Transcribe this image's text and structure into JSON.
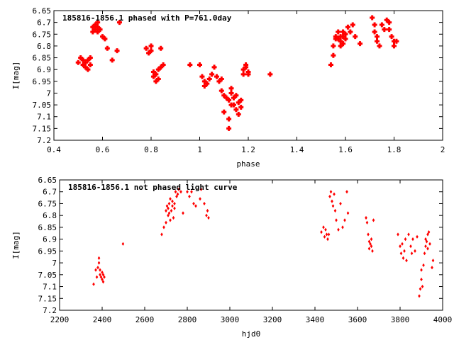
{
  "chart_data": [
    {
      "type": "scatter",
      "title": "",
      "xlabel": "phase",
      "ylabel": "I[mag]",
      "legend": "185816-1856.1 phased with P=761.0day",
      "legend_placement": "top-left",
      "xlim": [
        0.4,
        2.0
      ],
      "ylim": [
        6.65,
        7.2
      ],
      "y_inverted": true,
      "grid": false,
      "marker": "cross",
      "color": "#ff0000",
      "xticks": [
        "0.4",
        "0.6",
        "0.8",
        "1",
        "1.2",
        "1.4",
        "1.6",
        "1.8",
        "2"
      ],
      "yticks": [
        "6.65",
        "6.7",
        "6.75",
        "6.8",
        "6.85",
        "6.9",
        "6.95",
        "7",
        "7.05",
        "7.1",
        "7.15",
        "7.2"
      ],
      "points": [
        [
          0.5,
          6.87
        ],
        [
          0.51,
          6.85
        ],
        [
          0.52,
          6.88
        ],
        [
          0.52,
          6.86
        ],
        [
          0.53,
          6.89
        ],
        [
          0.53,
          6.87
        ],
        [
          0.54,
          6.9
        ],
        [
          0.54,
          6.86
        ],
        [
          0.55,
          6.88
        ],
        [
          0.55,
          6.85
        ],
        [
          0.56,
          6.74
        ],
        [
          0.56,
          6.72
        ],
        [
          0.57,
          6.73
        ],
        [
          0.57,
          6.71
        ],
        [
          0.58,
          6.74
        ],
        [
          0.58,
          6.72
        ],
        [
          0.58,
          6.7
        ],
        [
          0.59,
          6.73
        ],
        [
          0.6,
          6.76
        ],
        [
          0.61,
          6.77
        ],
        [
          0.62,
          6.81
        ],
        [
          0.64,
          6.86
        ],
        [
          0.66,
          6.82
        ],
        [
          0.67,
          6.7
        ],
        [
          0.78,
          6.81
        ],
        [
          0.79,
          6.83
        ],
        [
          0.8,
          6.8
        ],
        [
          0.8,
          6.82
        ],
        [
          0.81,
          6.91
        ],
        [
          0.81,
          6.93
        ],
        [
          0.82,
          6.95
        ],
        [
          0.82,
          6.92
        ],
        [
          0.83,
          6.94
        ],
        [
          0.83,
          6.9
        ],
        [
          0.84,
          6.89
        ],
        [
          0.85,
          6.88
        ],
        [
          0.84,
          6.81
        ],
        [
          0.96,
          6.88
        ],
        [
          1.0,
          6.88
        ],
        [
          1.01,
          6.93
        ],
        [
          1.02,
          6.95
        ],
        [
          1.02,
          6.97
        ],
        [
          1.03,
          6.96
        ],
        [
          1.04,
          6.94
        ],
        [
          1.05,
          6.92
        ],
        [
          1.06,
          6.89
        ],
        [
          1.07,
          6.93
        ],
        [
          1.08,
          6.95
        ],
        [
          1.09,
          6.94
        ],
        [
          1.09,
          6.99
        ],
        [
          1.1,
          7.01
        ],
        [
          1.1,
          7.08
        ],
        [
          1.11,
          7.02
        ],
        [
          1.12,
          7.03
        ],
        [
          1.12,
          7.11
        ],
        [
          1.12,
          7.15
        ],
        [
          1.13,
          7.05
        ],
        [
          1.13,
          7.0
        ],
        [
          1.13,
          6.98
        ],
        [
          1.14,
          7.02
        ],
        [
          1.14,
          7.05
        ],
        [
          1.15,
          7.01
        ],
        [
          1.15,
          7.07
        ],
        [
          1.16,
          7.04
        ],
        [
          1.16,
          7.09
        ],
        [
          1.17,
          7.06
        ],
        [
          1.17,
          7.03
        ],
        [
          1.18,
          6.92
        ],
        [
          1.18,
          6.9
        ],
        [
          1.19,
          6.89
        ],
        [
          1.19,
          6.88
        ],
        [
          1.2,
          6.91
        ],
        [
          1.2,
          6.92
        ],
        [
          1.29,
          6.92
        ],
        [
          1.54,
          6.88
        ],
        [
          1.55,
          6.84
        ],
        [
          1.55,
          6.8
        ],
        [
          1.56,
          6.77
        ],
        [
          1.56,
          6.76
        ],
        [
          1.57,
          6.74
        ],
        [
          1.57,
          6.77
        ],
        [
          1.58,
          6.76
        ],
        [
          1.58,
          6.78
        ],
        [
          1.58,
          6.8
        ],
        [
          1.59,
          6.74
        ],
        [
          1.59,
          6.76
        ],
        [
          1.59,
          6.79
        ],
        [
          1.6,
          6.75
        ],
        [
          1.6,
          6.77
        ],
        [
          1.61,
          6.72
        ],
        [
          1.62,
          6.74
        ],
        [
          1.63,
          6.71
        ],
        [
          1.64,
          6.76
        ],
        [
          1.66,
          6.79
        ],
        [
          1.71,
          6.68
        ],
        [
          1.72,
          6.71
        ],
        [
          1.72,
          6.74
        ],
        [
          1.73,
          6.76
        ],
        [
          1.73,
          6.78
        ],
        [
          1.74,
          6.8
        ],
        [
          1.75,
          6.71
        ],
        [
          1.76,
          6.73
        ],
        [
          1.77,
          6.69
        ],
        [
          1.78,
          6.7
        ],
        [
          1.78,
          6.73
        ],
        [
          1.79,
          6.76
        ],
        [
          1.8,
          6.78
        ],
        [
          1.8,
          6.8
        ],
        [
          1.81,
          6.78
        ]
      ]
    },
    {
      "type": "scatter",
      "title": "",
      "xlabel": "hjd0",
      "ylabel": "I[mag]",
      "legend": "185816-1856.1 not phased light curve",
      "legend_placement": "top-left",
      "xlim": [
        2200,
        4000
      ],
      "ylim": [
        6.65,
        7.2
      ],
      "y_inverted": true,
      "grid": false,
      "marker": "diamond",
      "color": "#ff0000",
      "xticks": [
        "2200",
        "2400",
        "2600",
        "2800",
        "3000",
        "3200",
        "3400",
        "3600",
        "3800",
        "4000"
      ],
      "yticks": [
        "6.65",
        "6.7",
        "6.75",
        "6.8",
        "6.85",
        "6.9",
        "6.95",
        "7",
        "7.05",
        "7.1",
        "7.15",
        "7.2"
      ],
      "points": [
        [
          2360,
          7.09
        ],
        [
          2370,
          7.03
        ],
        [
          2375,
          7.06
        ],
        [
          2380,
          7.02
        ],
        [
          2385,
          6.98
        ],
        [
          2385,
          7.0
        ],
        [
          2390,
          7.05
        ],
        [
          2390,
          7.03
        ],
        [
          2395,
          7.06
        ],
        [
          2400,
          7.04
        ],
        [
          2400,
          7.07
        ],
        [
          2405,
          7.08
        ],
        [
          2405,
          7.05
        ],
        [
          2410,
          7.06
        ],
        [
          2498,
          6.92
        ],
        [
          2680,
          6.88
        ],
        [
          2690,
          6.85
        ],
        [
          2700,
          6.83
        ],
        [
          2700,
          6.78
        ],
        [
          2705,
          6.76
        ],
        [
          2710,
          6.8
        ],
        [
          2710,
          6.77
        ],
        [
          2715,
          6.75
        ],
        [
          2715,
          6.79
        ],
        [
          2720,
          6.73
        ],
        [
          2720,
          6.82
        ],
        [
          2725,
          6.78
        ],
        [
          2730,
          6.76
        ],
        [
          2730,
          6.74
        ],
        [
          2735,
          6.81
        ],
        [
          2740,
          6.77
        ],
        [
          2740,
          6.75
        ],
        [
          2745,
          6.7
        ],
        [
          2750,
          6.72
        ],
        [
          2755,
          6.71
        ],
        [
          2760,
          6.69
        ],
        [
          2770,
          6.7
        ],
        [
          2780,
          6.79
        ],
        [
          2800,
          6.7
        ],
        [
          2810,
          6.72
        ],
        [
          2820,
          6.7
        ],
        [
          2830,
          6.75
        ],
        [
          2840,
          6.76
        ],
        [
          2860,
          6.73
        ],
        [
          2865,
          6.69
        ],
        [
          2880,
          6.75
        ],
        [
          2890,
          6.8
        ],
        [
          2895,
          6.78
        ],
        [
          2900,
          6.81
        ],
        [
          3430,
          6.87
        ],
        [
          3440,
          6.85
        ],
        [
          3445,
          6.89
        ],
        [
          3450,
          6.86
        ],
        [
          3455,
          6.88
        ],
        [
          3460,
          6.9
        ],
        [
          3465,
          6.88
        ],
        [
          3470,
          6.72
        ],
        [
          3475,
          6.7
        ],
        [
          3480,
          6.74
        ],
        [
          3485,
          6.76
        ],
        [
          3490,
          6.71
        ],
        [
          3495,
          6.78
        ],
        [
          3500,
          6.82
        ],
        [
          3510,
          6.86
        ],
        [
          3520,
          6.75
        ],
        [
          3530,
          6.85
        ],
        [
          3540,
          6.82
        ],
        [
          3550,
          6.7
        ],
        [
          3555,
          6.79
        ],
        [
          3640,
          6.81
        ],
        [
          3645,
          6.83
        ],
        [
          3650,
          6.88
        ],
        [
          3655,
          6.91
        ],
        [
          3655,
          6.94
        ],
        [
          3660,
          6.92
        ],
        [
          3665,
          6.93
        ],
        [
          3665,
          6.9
        ],
        [
          3670,
          6.95
        ],
        [
          3675,
          6.82
        ],
        [
          3790,
          6.88
        ],
        [
          3800,
          6.93
        ],
        [
          3805,
          6.96
        ],
        [
          3810,
          6.92
        ],
        [
          3815,
          6.98
        ],
        [
          3820,
          6.95
        ],
        [
          3825,
          6.9
        ],
        [
          3830,
          6.99
        ],
        [
          3840,
          6.88
        ],
        [
          3850,
          6.93
        ],
        [
          3855,
          6.96
        ],
        [
          3860,
          6.9
        ],
        [
          3870,
          6.95
        ],
        [
          3880,
          6.89
        ],
        [
          3890,
          7.14
        ],
        [
          3895,
          7.11
        ],
        [
          3900,
          7.07
        ],
        [
          3900,
          7.03
        ],
        [
          3905,
          7.1
        ],
        [
          3910,
          7.01
        ],
        [
          3915,
          6.96
        ],
        [
          3920,
          6.93
        ],
        [
          3920,
          6.9
        ],
        [
          3925,
          6.91
        ],
        [
          3930,
          6.88
        ],
        [
          3930,
          6.94
        ],
        [
          3935,
          6.87
        ],
        [
          3940,
          6.92
        ],
        [
          3950,
          7.02
        ],
        [
          3955,
          6.99
        ]
      ]
    }
  ]
}
